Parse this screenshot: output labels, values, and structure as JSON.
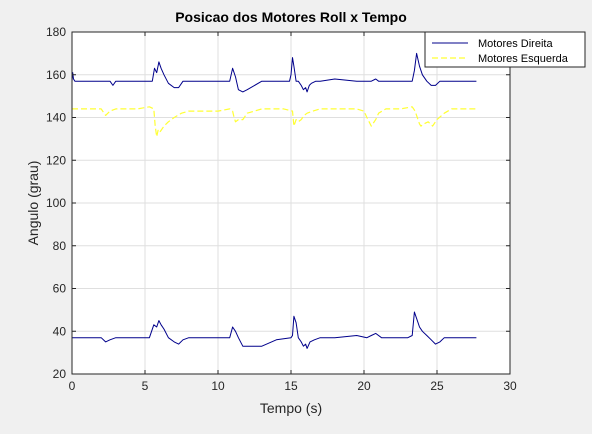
{
  "chart_data": {
    "type": "line",
    "title": "Posicao dos Motores Roll x Tempo",
    "xlabel": "Tempo (s)",
    "ylabel": "Angulo (grau)",
    "xlim": [
      0,
      30
    ],
    "ylim": [
      20,
      180
    ],
    "xticks": [
      0,
      5,
      10,
      15,
      20,
      25,
      30
    ],
    "yticks": [
      20,
      40,
      60,
      80,
      100,
      120,
      140,
      160,
      180
    ],
    "grid": true,
    "legend_position": "top-right",
    "series": [
      {
        "name": "Motores Direita",
        "color": "#00008b",
        "style": "solid",
        "x": [
          0,
          0.05,
          0.1,
          0.2,
          0.3,
          2.0,
          2.2,
          2.4,
          2.6,
          2.8,
          3.0,
          4.5,
          5.0,
          5.3,
          5.5,
          5.65,
          5.8,
          5.95,
          6.1,
          6.3,
          6.6,
          7.0,
          7.3,
          7.6,
          8.0,
          9.0,
          10.0,
          10.5,
          10.8,
          11.0,
          11.2,
          11.4,
          11.7,
          12.0,
          13.0,
          13.5,
          14.0,
          14.3,
          14.6,
          14.9,
          15.0,
          15.1,
          15.2,
          15.35,
          15.5,
          15.7,
          15.85,
          16.0,
          16.1,
          16.25,
          16.4,
          16.7,
          17.0,
          18.0,
          19.5,
          20.2,
          20.5,
          20.8,
          21.0,
          22.0,
          23.0,
          23.3,
          23.45,
          23.6,
          23.8,
          24.0,
          24.3,
          24.6,
          24.9,
          25.2,
          25.5,
          26.0,
          27.7
        ],
        "y": [
          157,
          161,
          158,
          157,
          157,
          157,
          157,
          157,
          157,
          155,
          157,
          157,
          157,
          157,
          157,
          163,
          161,
          166,
          163,
          160,
          156,
          154,
          154,
          157,
          157,
          157,
          157,
          157,
          157,
          163,
          159,
          153,
          152,
          153,
          157,
          157,
          157,
          157,
          157,
          157,
          160,
          168,
          164,
          157,
          157,
          155,
          153,
          154,
          152,
          155,
          156,
          157,
          157,
          158,
          157,
          157,
          157,
          158,
          157,
          157,
          157,
          157,
          162,
          170,
          164,
          160,
          157,
          155,
          155,
          157,
          157,
          157,
          157
        ]
      },
      {
        "name": "Motores Esquerda",
        "color": "#ffff33",
        "style": "dashed",
        "x": [
          0,
          0.2,
          0.4,
          2.0,
          2.3,
          2.6,
          3.0,
          4.5,
          5.3,
          5.6,
          5.7,
          5.8,
          5.9,
          6.0,
          6.3,
          6.6,
          7.0,
          7.5,
          8.0,
          10.0,
          10.8,
          11.0,
          11.1,
          11.2,
          11.4,
          11.7,
          12.0,
          12.5,
          13.0,
          14.5,
          15.1,
          15.2,
          15.35,
          15.5,
          15.7,
          15.9,
          16.1,
          16.5,
          17.0,
          18.5,
          19.5,
          20.0,
          20.2,
          20.5,
          20.8,
          21.0,
          21.5,
          22.5,
          23.3,
          23.5,
          23.7,
          23.8,
          23.9,
          24.1,
          24.4,
          24.7,
          25.0,
          25.5,
          26.0,
          27.7
        ],
        "y": [
          144,
          144,
          144,
          144,
          141,
          143,
          144,
          144,
          145,
          144,
          136,
          131,
          134,
          133,
          136,
          138,
          140,
          142,
          143,
          143,
          144,
          143,
          140,
          138,
          139,
          139,
          142,
          143,
          144,
          144,
          143,
          136,
          139,
          138,
          139,
          141,
          142,
          143,
          144,
          144,
          144,
          143,
          140,
          136,
          139,
          142,
          144,
          144,
          145,
          143,
          139,
          137,
          136,
          137,
          138,
          136,
          139,
          142,
          144,
          144
        ]
      },
      {
        "name": "",
        "color": "#00008b",
        "style": "solid",
        "x": [
          0,
          0.2,
          2.0,
          2.3,
          2.6,
          3.0,
          5.3,
          5.6,
          5.8,
          5.95,
          6.1,
          6.3,
          6.6,
          7.0,
          7.3,
          7.6,
          8.0,
          10.0,
          10.8,
          11.0,
          11.2,
          11.4,
          11.7,
          12.0,
          13.0,
          14.0,
          15.0,
          15.1,
          15.2,
          15.35,
          15.5,
          15.7,
          15.85,
          16.0,
          16.1,
          16.3,
          16.6,
          17.0,
          18.0,
          19.5,
          20.2,
          20.5,
          20.8,
          21.2,
          22.0,
          23.0,
          23.3,
          23.45,
          23.6,
          23.8,
          24.0,
          24.3,
          24.6,
          24.9,
          25.2,
          25.5,
          26.0,
          27.7
        ],
        "y": [
          37,
          37,
          37,
          35,
          36,
          37,
          37,
          43,
          42,
          45,
          43,
          41,
          37,
          35,
          34,
          36,
          37,
          37,
          37,
          42,
          40,
          37,
          33,
          33,
          33,
          36,
          37,
          38,
          47,
          44,
          37,
          35,
          33,
          34,
          32,
          35,
          36,
          37,
          37,
          38,
          37,
          38,
          39,
          37,
          37,
          37,
          38,
          49,
          46,
          42,
          40,
          38,
          36,
          34,
          35,
          37,
          37,
          37
        ]
      }
    ]
  }
}
